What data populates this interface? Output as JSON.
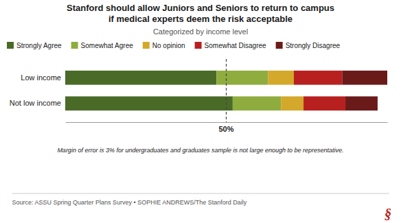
{
  "chart_data": {
    "type": "bar",
    "orientation": "horizontal",
    "stacked": true,
    "title": "Stanford should allow Juniors and Seniors to return to campus\nif medical experts deem the risk acceptable",
    "subtitle": "Categorized by income level",
    "categories": [
      "Low income",
      "Not low income"
    ],
    "series": [
      {
        "name": "Strongly Agree",
        "color": "#4a6b28",
        "values": [
          0.47,
          0.52
        ]
      },
      {
        "name": "Somewhat Agree",
        "color": "#8fad3f",
        "values": [
          0.16,
          0.15
        ]
      },
      {
        "name": "No opinion",
        "color": "#d4a82a",
        "values": [
          0.08,
          0.07
        ]
      },
      {
        "name": "Somewhat Disagree",
        "color": "#b82020",
        "values": [
          0.15,
          0.13
        ]
      },
      {
        "name": "Strongly Disagree",
        "color": "#6b1a1a",
        "values": [
          0.14,
          0.1
        ]
      }
    ],
    "xlim": [
      0,
      1
    ],
    "xticks": [],
    "tick_labels": "y",
    "grid": false,
    "legend": "top",
    "annotations": [
      {
        "text": "50%",
        "x": 0.5
      },
      {
        "text": "Margin of error is 3% for undergraduates and graduates sample is not large enough to be representative."
      },
      {
        "text": "Source: ASSU Spring Quarter Plans Survey • SOPHIE ANDREWS/The Stanford Daily"
      },
      {
        "text": "§",
        "color": "#b82020"
      }
    ]
  }
}
